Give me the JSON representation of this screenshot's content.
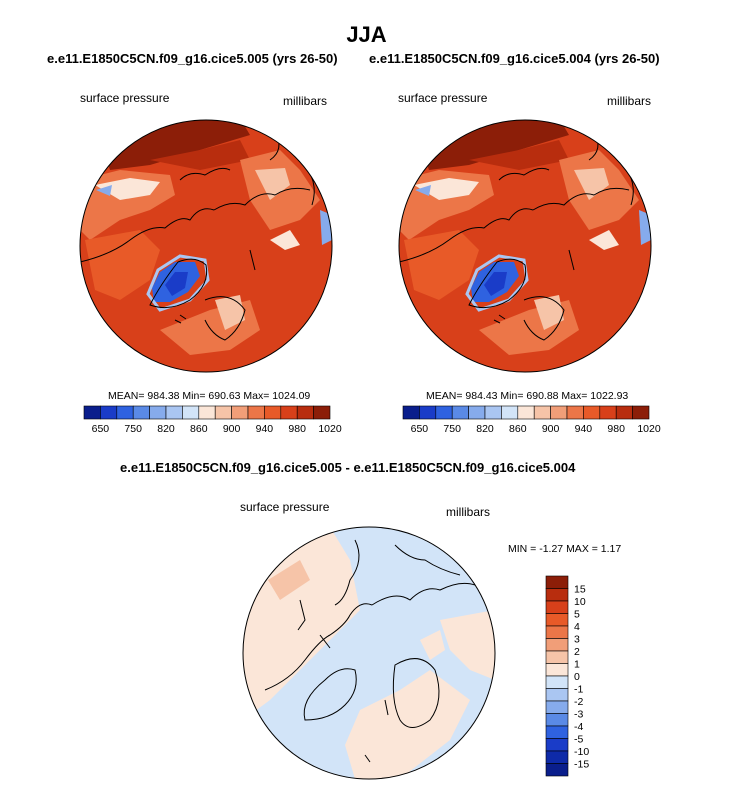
{
  "page": {
    "title": "JJA",
    "case_a_title": "e.e11.E1850C5CN.f09_g16.cice5.005 (yrs 26-50)",
    "case_b_title": "e.e11.E1850C5CN.f09_g16.cice5.004 (yrs 26-50)",
    "diff_title": "e.e11.E1850C5CN.f09_g16.cice5.005 - e.e11.E1850C5CN.f09_g16.cice5.004"
  },
  "chart_data": [
    {
      "type": "heatmap",
      "projection": "north polar stereographic",
      "variable_label": "surface pressure",
      "units_label": "millibars",
      "stats": {
        "mean": "984.38",
        "min": "690.63",
        "max": "1024.09"
      },
      "stats_text": "MEAN= 984.38  Min= 690.63  Max= 1024.09",
      "colorbar": {
        "orientation": "horizontal",
        "tick_labels": [
          "650",
          "750",
          "820",
          "860",
          "900",
          "940",
          "980",
          "1020"
        ],
        "colors": [
          "#0a1e8c",
          "#1a3cc8",
          "#2f62e0",
          "#5a8ae6",
          "#86abec",
          "#aac6f2",
          "#d2e4f8",
          "#fbe6d8",
          "#f6c4a8",
          "#f19e78",
          "#ec7648",
          "#e85a28",
          "#d8401a",
          "#b82d0e",
          "#8c1e08"
        ]
      }
    },
    {
      "type": "heatmap",
      "projection": "north polar stereographic",
      "variable_label": "surface pressure",
      "units_label": "millibars",
      "stats": {
        "mean": "984.43",
        "min": "690.88",
        "max": "1022.93"
      },
      "stats_text": "MEAN= 984.43  Min= 690.88  Max= 1022.93",
      "colorbar": {
        "orientation": "horizontal",
        "tick_labels": [
          "650",
          "750",
          "820",
          "860",
          "900",
          "940",
          "980",
          "1020"
        ],
        "colors": [
          "#0a1e8c",
          "#1a3cc8",
          "#2f62e0",
          "#5a8ae6",
          "#86abec",
          "#aac6f2",
          "#d2e4f8",
          "#fbe6d8",
          "#f6c4a8",
          "#f19e78",
          "#ec7648",
          "#e85a28",
          "#d8401a",
          "#b82d0e",
          "#8c1e08"
        ]
      }
    },
    {
      "type": "heatmap",
      "projection": "north polar stereographic",
      "variable_label": "surface pressure",
      "units_label": "millibars",
      "stats": {
        "min": "-1.27",
        "max": "1.17"
      },
      "stats_text": "MIN =  -1.27 MAX =   1.17",
      "colorbar": {
        "orientation": "vertical",
        "tick_labels": [
          "15",
          "10",
          "5",
          "4",
          "3",
          "2",
          "1",
          "0",
          "-1",
          "-2",
          "-3",
          "-4",
          "-5",
          "-10",
          "-15"
        ],
        "colors": [
          "#8c1e08",
          "#b82d0e",
          "#d8401a",
          "#e85a28",
          "#ec7648",
          "#f19e78",
          "#f6c4a8",
          "#fbe6d8",
          "#d2e4f8",
          "#aac6f2",
          "#86abec",
          "#5a8ae6",
          "#2f62e0",
          "#1a3cc8",
          "#0e2aa8",
          "#0a1e8c"
        ]
      }
    }
  ]
}
